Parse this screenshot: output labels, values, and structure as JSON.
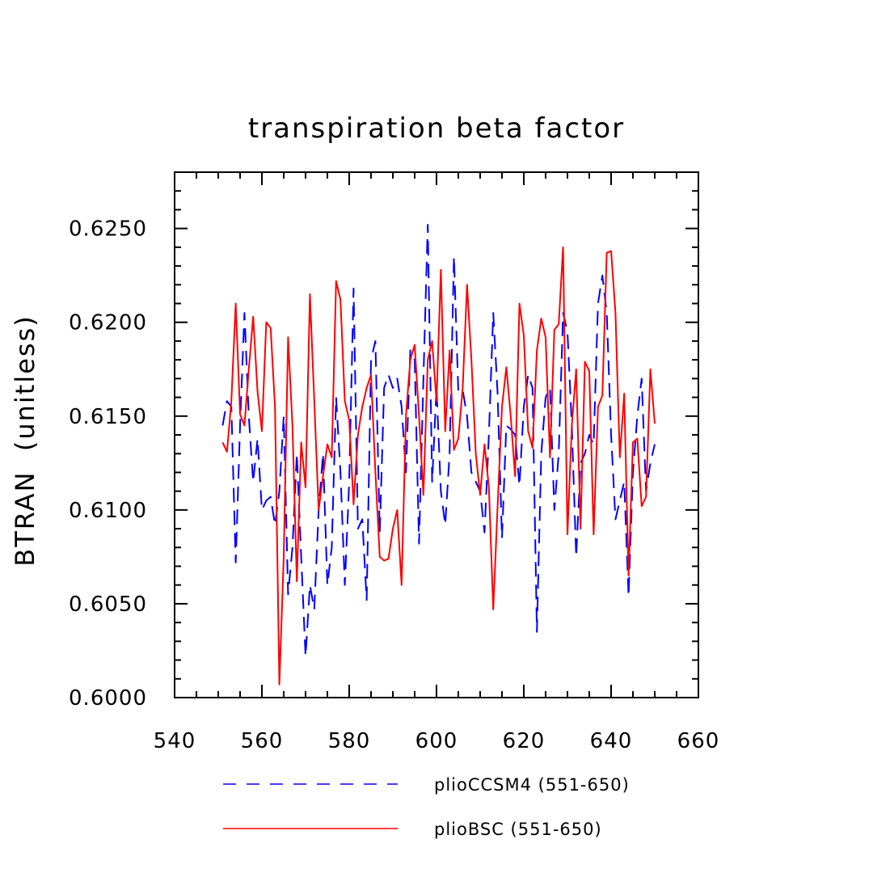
{
  "chart_data": {
    "type": "line",
    "title": "transpiration beta factor",
    "xlabel": "",
    "ylabel": "BTRAN  (unitless)",
    "xlim": [
      540,
      660
    ],
    "ylim": [
      0.6,
      0.628
    ],
    "xticks": [
      540,
      560,
      580,
      600,
      620,
      640,
      660
    ],
    "xtick_labels": [
      "540",
      "560",
      "580",
      "600",
      "620",
      "640",
      "660"
    ],
    "yticks": [
      0.6,
      0.605,
      0.61,
      0.615,
      0.62,
      0.625
    ],
    "ytick_labels": [
      "0.6000",
      "0.6050",
      "0.6100",
      "0.6150",
      "0.6200",
      "0.6250"
    ],
    "x_minor_step": 5,
    "y_minor_step": 0.001,
    "grid": false,
    "legend_position": "bottom",
    "series": [
      {
        "name": "plioCCSM4 (551-650)",
        "color": "#0000ff",
        "style": "dashed",
        "x_start": 551,
        "x_step": 1,
        "values": [
          0.6145,
          0.6158,
          0.6155,
          0.6072,
          0.6145,
          0.6205,
          0.615,
          0.6115,
          0.6138,
          0.61,
          0.6105,
          0.6107,
          0.6092,
          0.611,
          0.615,
          0.6055,
          0.608,
          0.613,
          0.6075,
          0.6022,
          0.606,
          0.6047,
          0.61,
          0.613,
          0.606,
          0.608,
          0.616,
          0.612,
          0.606,
          0.6115,
          0.6218,
          0.609,
          0.6095,
          0.6052,
          0.618,
          0.619,
          0.6088,
          0.6165,
          0.6172,
          0.6165,
          0.617,
          0.6155,
          0.612,
          0.6185,
          0.618,
          0.6082,
          0.617,
          0.6252,
          0.6115,
          0.6165,
          0.611,
          0.6092,
          0.613,
          0.6235,
          0.6163,
          0.6164,
          0.615,
          0.612,
          0.6115,
          0.611,
          0.6088,
          0.614,
          0.6205,
          0.6162,
          0.6085,
          0.6145,
          0.6143,
          0.614,
          0.6113,
          0.6155,
          0.6172,
          0.6165,
          0.6035,
          0.613,
          0.616,
          0.6165,
          0.61,
          0.613,
          0.6205,
          0.6195,
          0.6145,
          0.6075,
          0.6125,
          0.613,
          0.614,
          0.6135,
          0.621,
          0.6225,
          0.6205,
          0.614,
          0.6095,
          0.6105,
          0.6115,
          0.6054,
          0.612,
          0.615,
          0.617,
          0.611,
          0.6125,
          0.6135
        ]
      },
      {
        "name": "plioBSC (551-650)",
        "color": "#ff0000",
        "style": "solid",
        "x_start": 551,
        "x_step": 1,
        "values": [
          0.6136,
          0.6131,
          0.6158,
          0.621,
          0.6151,
          0.6145,
          0.6175,
          0.6203,
          0.6163,
          0.6142,
          0.62,
          0.6197,
          0.6155,
          0.6007,
          0.6075,
          0.6192,
          0.6145,
          0.6062,
          0.6136,
          0.6112,
          0.6215,
          0.6158,
          0.61,
          0.6118,
          0.6135,
          0.6128,
          0.6222,
          0.6212,
          0.6158,
          0.6148,
          0.6103,
          0.614,
          0.6155,
          0.6165,
          0.6172,
          0.612,
          0.6075,
          0.6073,
          0.6074,
          0.609,
          0.61,
          0.606,
          0.615,
          0.618,
          0.6188,
          0.615,
          0.6108,
          0.618,
          0.619,
          0.6158,
          0.6228,
          0.6142,
          0.6185,
          0.6132,
          0.6138,
          0.6165,
          0.622,
          0.618,
          0.613,
          0.6108,
          0.6135,
          0.6112,
          0.6047,
          0.6102,
          0.6155,
          0.6176,
          0.615,
          0.6118,
          0.621,
          0.6193,
          0.6142,
          0.6133,
          0.6185,
          0.6202,
          0.6192,
          0.6128,
          0.6196,
          0.6199,
          0.624,
          0.6087,
          0.6145,
          0.6175,
          0.609,
          0.6179,
          0.6174,
          0.6087,
          0.6155,
          0.6161,
          0.6237,
          0.6238,
          0.6205,
          0.6128,
          0.6162,
          0.6065,
          0.6136,
          0.6138,
          0.6102,
          0.6107,
          0.6175,
          0.6146
        ]
      }
    ]
  }
}
